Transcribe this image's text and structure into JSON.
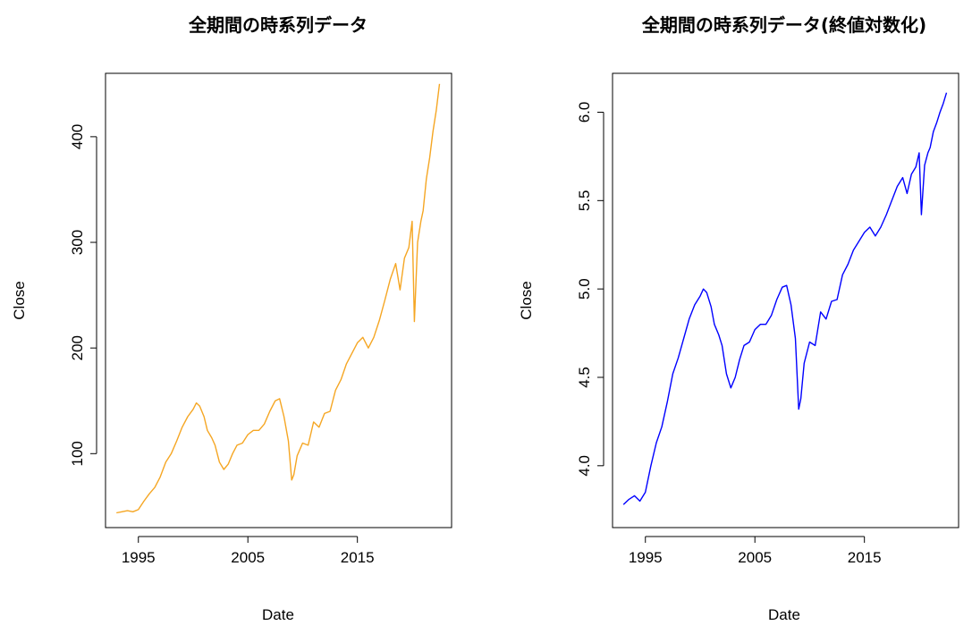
{
  "chart_data": [
    {
      "type": "line",
      "title": "全期間の時系列データ",
      "xlabel": "Date",
      "ylabel": "Close",
      "x_ticks": [
        "1995",
        "2005",
        "2015"
      ],
      "y_ticks": [
        "100",
        "200",
        "300",
        "400"
      ],
      "x_tick_values": [
        1995,
        2005,
        2015
      ],
      "y_tick_values": [
        100,
        200,
        300,
        400
      ],
      "xlim": [
        1992,
        2023.6
      ],
      "ylim": [
        30,
        460
      ],
      "line_color": "#F5A623",
      "series": [
        {
          "x": [
            1993.0,
            1993.5,
            1994.0,
            1994.5,
            1995.0,
            1995.5,
            1996.0,
            1996.5,
            1997.0,
            1997.5,
            1998.0,
            1998.5,
            1999.0,
            1999.5,
            2000.0,
            2000.3,
            2000.6,
            2001.0,
            2001.3,
            2001.7,
            2002.0,
            2002.4,
            2002.8,
            2003.2,
            2003.6,
            2004.0,
            2004.5,
            2005.0,
            2005.5,
            2006.0,
            2006.5,
            2007.0,
            2007.5,
            2007.9,
            2008.3,
            2008.7,
            2009.0,
            2009.2,
            2009.5,
            2010.0,
            2010.5,
            2011.0,
            2011.5,
            2012.0,
            2012.5,
            2013.0,
            2013.5,
            2014.0,
            2014.5,
            2015.0,
            2015.5,
            2016.0,
            2016.5,
            2017.0,
            2017.5,
            2018.0,
            2018.5,
            2018.9,
            2019.3,
            2019.7,
            2020.0,
            2020.2,
            2020.5,
            2020.8,
            2021.0,
            2021.3,
            2021.6,
            2021.9,
            2022.2,
            2022.5
          ],
          "values": [
            44,
            45,
            46,
            45,
            47,
            55,
            62,
            68,
            78,
            92,
            100,
            112,
            125,
            135,
            142,
            148,
            145,
            135,
            122,
            115,
            108,
            92,
            85,
            90,
            100,
            108,
            110,
            118,
            122,
            122,
            128,
            140,
            150,
            152,
            135,
            112,
            75,
            80,
            98,
            110,
            108,
            130,
            125,
            138,
            140,
            160,
            170,
            185,
            195,
            205,
            210,
            200,
            210,
            226,
            245,
            265,
            280,
            255,
            285,
            295,
            320,
            225,
            300,
            320,
            330,
            360,
            380,
            405,
            425,
            450
          ]
        }
      ]
    },
    {
      "type": "line",
      "title": "全期間の時系列データ(終値対数化)",
      "xlabel": "Date",
      "ylabel": "Close",
      "x_ticks": [
        "1995",
        "2005",
        "2015"
      ],
      "y_ticks": [
        "4.0",
        "4.5",
        "5.0",
        "5.5",
        "6.0"
      ],
      "x_tick_values": [
        1995,
        2005,
        2015
      ],
      "y_tick_values": [
        4.0,
        4.5,
        5.0,
        5.5,
        6.0
      ],
      "xlim": [
        1992,
        2023.6
      ],
      "ylim": [
        3.65,
        6.22
      ],
      "line_color": "#0000FF",
      "series": [
        {
          "x": [
            1993.0,
            1993.5,
            1994.0,
            1994.5,
            1995.0,
            1995.5,
            1996.0,
            1996.5,
            1997.0,
            1997.5,
            1998.0,
            1998.5,
            1999.0,
            1999.5,
            2000.0,
            2000.3,
            2000.6,
            2001.0,
            2001.3,
            2001.7,
            2002.0,
            2002.4,
            2002.8,
            2003.2,
            2003.6,
            2004.0,
            2004.5,
            2005.0,
            2005.5,
            2006.0,
            2006.5,
            2007.0,
            2007.5,
            2007.9,
            2008.3,
            2008.7,
            2009.0,
            2009.2,
            2009.5,
            2010.0,
            2010.5,
            2011.0,
            2011.5,
            2012.0,
            2012.5,
            2013.0,
            2013.5,
            2014.0,
            2014.5,
            2015.0,
            2015.5,
            2016.0,
            2016.5,
            2017.0,
            2017.5,
            2018.0,
            2018.5,
            2018.9,
            2019.3,
            2019.7,
            2020.0,
            2020.2,
            2020.5,
            2020.8,
            2021.0,
            2021.3,
            2021.6,
            2021.9,
            2022.2,
            2022.5
          ],
          "values": [
            3.78,
            3.81,
            3.83,
            3.8,
            3.85,
            4.0,
            4.13,
            4.22,
            4.36,
            4.52,
            4.61,
            4.72,
            4.83,
            4.91,
            4.96,
            5.0,
            4.98,
            4.9,
            4.8,
            4.74,
            4.68,
            4.52,
            4.44,
            4.5,
            4.6,
            4.68,
            4.7,
            4.77,
            4.8,
            4.8,
            4.85,
            4.94,
            5.01,
            5.02,
            4.91,
            4.72,
            4.32,
            4.38,
            4.58,
            4.7,
            4.68,
            4.87,
            4.83,
            4.93,
            4.94,
            5.08,
            5.14,
            5.22,
            5.27,
            5.32,
            5.35,
            5.3,
            5.35,
            5.42,
            5.5,
            5.58,
            5.63,
            5.54,
            5.65,
            5.69,
            5.77,
            5.42,
            5.7,
            5.77,
            5.8,
            5.89,
            5.94,
            6.0,
            6.05,
            6.11
          ]
        }
      ]
    }
  ]
}
